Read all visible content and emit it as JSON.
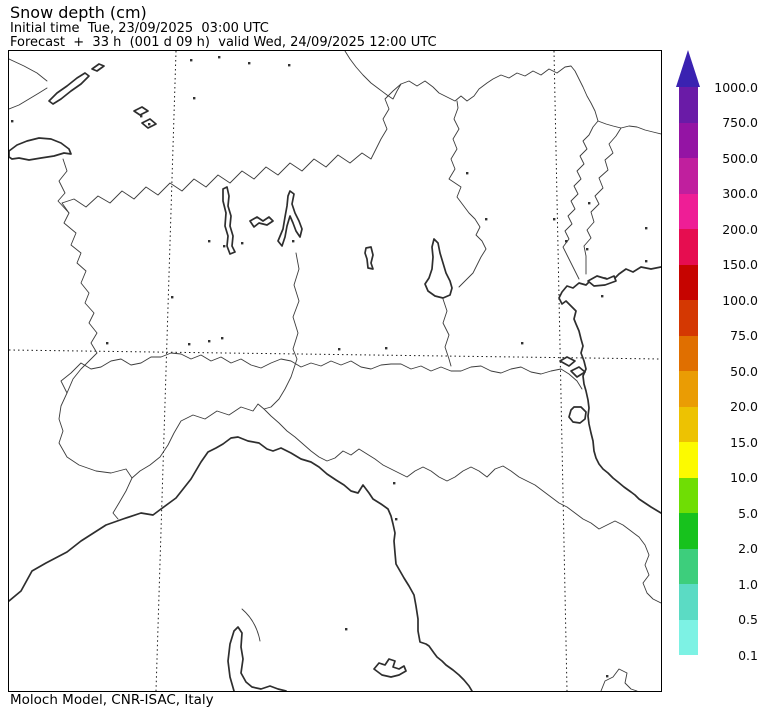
{
  "header": {
    "title": "Snow depth (cm)",
    "initial_time_line": "Initial time  Tue, 23/09/2025  03:00 UTC",
    "forecast_line": "Forecast  +  33 h  (001 d 09 h)  valid Wed, 24/09/2025 12:00 UTC"
  },
  "footer": {
    "credit": "Moloch Model, CNR-ISAC, Italy"
  },
  "colorbar": {
    "unit": "cm",
    "arrow_color": "#3A22B1",
    "tick_labels_top_to_bottom": [
      "1000.0",
      "750.0",
      "500.0",
      "300.0",
      "200.0",
      "150.0",
      "100.0",
      "75.0",
      "50.0",
      "20.0",
      "15.0",
      "10.0",
      "5.0",
      "2.0",
      "1.0",
      "0.5",
      "0.1"
    ],
    "segment_colors_top_to_bottom": [
      "#6A1BA7",
      "#9414A4",
      "#C01F9E",
      "#EE1E96",
      "#E60D50",
      "#C60400",
      "#D43802",
      "#E06F00",
      "#EA9C04",
      "#EDC202",
      "#FCFA00",
      "#6FDE04",
      "#17C21D",
      "#3DCE7C",
      "#5BDBC4",
      "#7DF2E4"
    ]
  }
}
